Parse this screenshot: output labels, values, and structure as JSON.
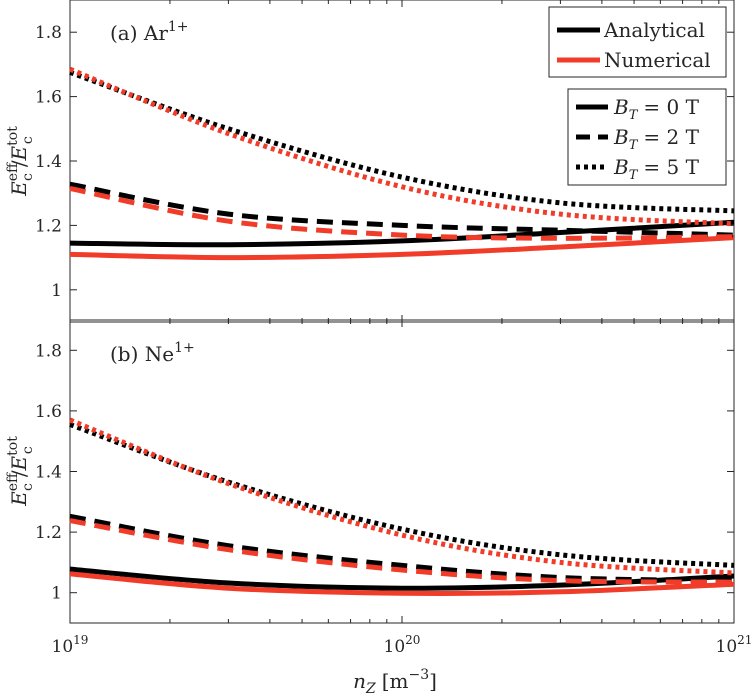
{
  "chart_data": [
    {
      "type": "line",
      "title": "(a) Ar",
      "title_sup": "1+",
      "ylabel_main": "E",
      "ylabel_sup_num": "eff",
      "ylabel_sub_num": "c",
      "ylabel_sep": "/",
      "ylabel_sup_den": "tot",
      "ylabel_sub_den": "c",
      "xscale": "log",
      "xlim": [
        1e+19,
        1e+21
      ],
      "ylim": [
        0.9,
        1.9
      ],
      "yticks": [
        "1",
        "1.2",
        "1.4",
        "1.6",
        "1.8"
      ],
      "series": [
        {
          "name": "Analytical B_T = 0 T",
          "model": "Analytical",
          "field": "0 T",
          "color": "#000000",
          "dash": "solid",
          "x": [
            1e+19,
            3e+19,
            1e+20,
            3e+20,
            1e+21
          ],
          "y": [
            1.145,
            1.14,
            1.152,
            1.178,
            1.21
          ]
        },
        {
          "name": "Numerical B_T = 0 T",
          "model": "Numerical",
          "field": "0 T",
          "color": "#f03c28",
          "dash": "solid",
          "x": [
            1e+19,
            3e+19,
            1e+20,
            3e+20,
            1e+21
          ],
          "y": [
            1.11,
            1.1,
            1.11,
            1.133,
            1.162
          ]
        },
        {
          "name": "Analytical B_T = 2 T",
          "model": "Analytical",
          "field": "2 T",
          "color": "#000000",
          "dash": "dash",
          "x": [
            1e+19,
            3e+19,
            1e+20,
            3e+20,
            1e+21
          ],
          "y": [
            1.328,
            1.235,
            1.2,
            1.185,
            1.17
          ]
        },
        {
          "name": "Numerical B_T = 2 T",
          "model": "Numerical",
          "field": "2 T",
          "color": "#f03c28",
          "dash": "dash",
          "x": [
            1e+19,
            3e+19,
            1e+20,
            3e+20,
            1e+21
          ],
          "y": [
            1.315,
            1.213,
            1.17,
            1.16,
            1.165
          ]
        },
        {
          "name": "Analytical B_T = 5 T",
          "model": "Analytical",
          "field": "5 T",
          "color": "#000000",
          "dash": "dot",
          "x": [
            1e+19,
            3e+19,
            1e+20,
            3e+20,
            1e+21
          ],
          "y": [
            1.675,
            1.5,
            1.35,
            1.27,
            1.245
          ]
        },
        {
          "name": "Numerical B_T = 5 T",
          "model": "Numerical",
          "field": "5 T",
          "color": "#f03c28",
          "dash": "dot",
          "x": [
            1e+19,
            3e+19,
            1e+20,
            3e+20,
            1e+21
          ],
          "y": [
            1.685,
            1.485,
            1.32,
            1.235,
            1.205
          ]
        }
      ],
      "legend_model": {
        "position": "top-right",
        "entries": [
          {
            "label": "Analytical",
            "color": "#000000"
          },
          {
            "label": "Numerical",
            "color": "#f03c28"
          }
        ]
      },
      "legend_field": {
        "position": "top-right",
        "entries": [
          {
            "label_var": "B",
            "label_sub": "T",
            "label_val": "= 0 T",
            "dash": "solid"
          },
          {
            "label_var": "B",
            "label_sub": "T",
            "label_val": "= 2 T",
            "dash": "dash"
          },
          {
            "label_var": "B",
            "label_sub": "T",
            "label_val": "= 5 T",
            "dash": "dot"
          }
        ]
      }
    },
    {
      "type": "line",
      "title": "(b) Ne",
      "title_sup": "1+",
      "ylabel_main": "E",
      "ylabel_sup_num": "eff",
      "ylabel_sub_num": "c",
      "ylabel_sep": "/",
      "ylabel_sup_den": "tot",
      "ylabel_sub_den": "c",
      "xscale": "log",
      "xlim": [
        1e+19,
        1e+21
      ],
      "ylim": [
        0.9,
        1.9
      ],
      "yticks": [
        "1",
        "1.2",
        "1.4",
        "1.6",
        "1.8"
      ],
      "xticks_base": "10",
      "xticks_exp": [
        "19",
        "20",
        "21"
      ],
      "xlabel_var": "n",
      "xlabel_sub": "Z",
      "xlabel_unit_open": "[m",
      "xlabel_unit_exp": "−3",
      "xlabel_unit_close": "]",
      "series": [
        {
          "name": "Analytical B_T = 0 T",
          "model": "Analytical",
          "field": "0 T",
          "color": "#000000",
          "dash": "solid",
          "x": [
            1e+19,
            3e+19,
            1e+20,
            3e+20,
            1e+21
          ],
          "y": [
            1.078,
            1.032,
            1.015,
            1.025,
            1.055
          ]
        },
        {
          "name": "Numerical B_T = 0 T",
          "model": "Numerical",
          "field": "0 T",
          "color": "#f03c28",
          "dash": "solid",
          "x": [
            1e+19,
            3e+19,
            1e+20,
            3e+20,
            1e+21
          ],
          "y": [
            1.062,
            1.015,
            0.998,
            1.003,
            1.028
          ]
        },
        {
          "name": "Analytical B_T = 2 T",
          "model": "Analytical",
          "field": "2 T",
          "color": "#000000",
          "dash": "dash",
          "x": [
            1e+19,
            3e+19,
            1e+20,
            3e+20,
            1e+21
          ],
          "y": [
            1.252,
            1.155,
            1.09,
            1.05,
            1.04
          ]
        },
        {
          "name": "Numerical B_T = 2 T",
          "model": "Numerical",
          "field": "2 T",
          "color": "#f03c28",
          "dash": "dash",
          "x": [
            1e+19,
            3e+19,
            1e+20,
            3e+20,
            1e+21
          ],
          "y": [
            1.238,
            1.142,
            1.075,
            1.04,
            1.035
          ]
        },
        {
          "name": "Analytical B_T = 5 T",
          "model": "Analytical",
          "field": "5 T",
          "color": "#000000",
          "dash": "dot",
          "x": [
            1e+19,
            3e+19,
            1e+20,
            3e+20,
            1e+21
          ],
          "y": [
            1.555,
            1.365,
            1.21,
            1.125,
            1.09
          ]
        },
        {
          "name": "Numerical B_T = 5 T",
          "model": "Numerical",
          "field": "5 T",
          "color": "#f03c28",
          "dash": "dot",
          "x": [
            1e+19,
            3e+19,
            1e+20,
            3e+20,
            1e+21
          ],
          "y": [
            1.57,
            1.36,
            1.19,
            1.1,
            1.065
          ]
        }
      ]
    }
  ]
}
